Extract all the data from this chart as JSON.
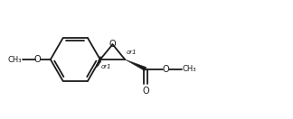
{
  "bg_color": "#ffffff",
  "line_color": "#1a1a1a",
  "line_width": 1.3,
  "text_color": "#1a1a1a",
  "font_size_atom": 7.0,
  "font_size_stereo": 5.0,
  "fig_width": 3.24,
  "fig_height": 1.32,
  "dpi": 100,
  "xlim": [
    0,
    9.5
  ],
  "ylim": [
    0,
    3.9
  ]
}
